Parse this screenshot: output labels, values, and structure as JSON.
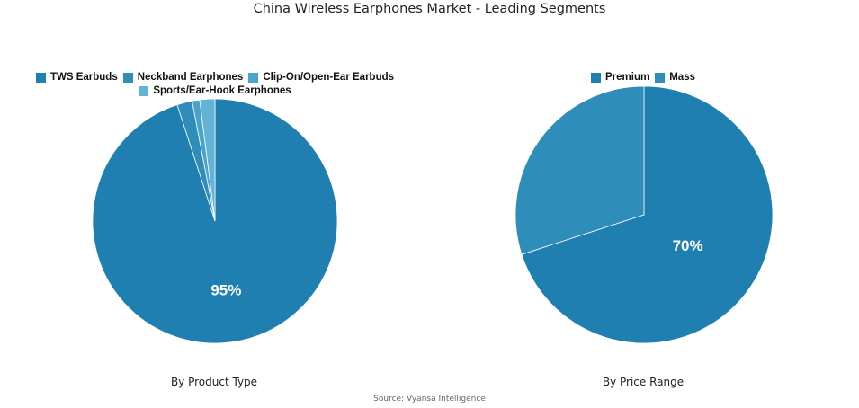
{
  "title": "China Wireless Earphones Market - Leading Segments",
  "source": "Source: Vyansa Intelligence",
  "chart_data": [
    {
      "type": "pie",
      "subtitle": "By Product Type",
      "legend_position": "top",
      "slices": [
        {
          "label": "TWS Earbuds",
          "value": 95,
          "color": "#1f7fb0",
          "display": "95%"
        },
        {
          "label": "Neckband Earphones",
          "value": 2,
          "color": "#2f8dba",
          "display": ""
        },
        {
          "label": "Clip-On/Open-Ear Earbuds",
          "value": 1,
          "color": "#4aa3cb",
          "display": ""
        },
        {
          "label": "Sports/Ear-Hook Earphones",
          "value": 2,
          "color": "#63b3d6",
          "display": ""
        }
      ]
    },
    {
      "type": "pie",
      "subtitle": "By Price Range",
      "legend_position": "top",
      "slices": [
        {
          "label": "Premium",
          "value": 70,
          "color": "#1f7fb0",
          "display": "70%"
        },
        {
          "label": "Mass",
          "value": 30,
          "color": "#2f8dba",
          "display": ""
        }
      ]
    }
  ]
}
